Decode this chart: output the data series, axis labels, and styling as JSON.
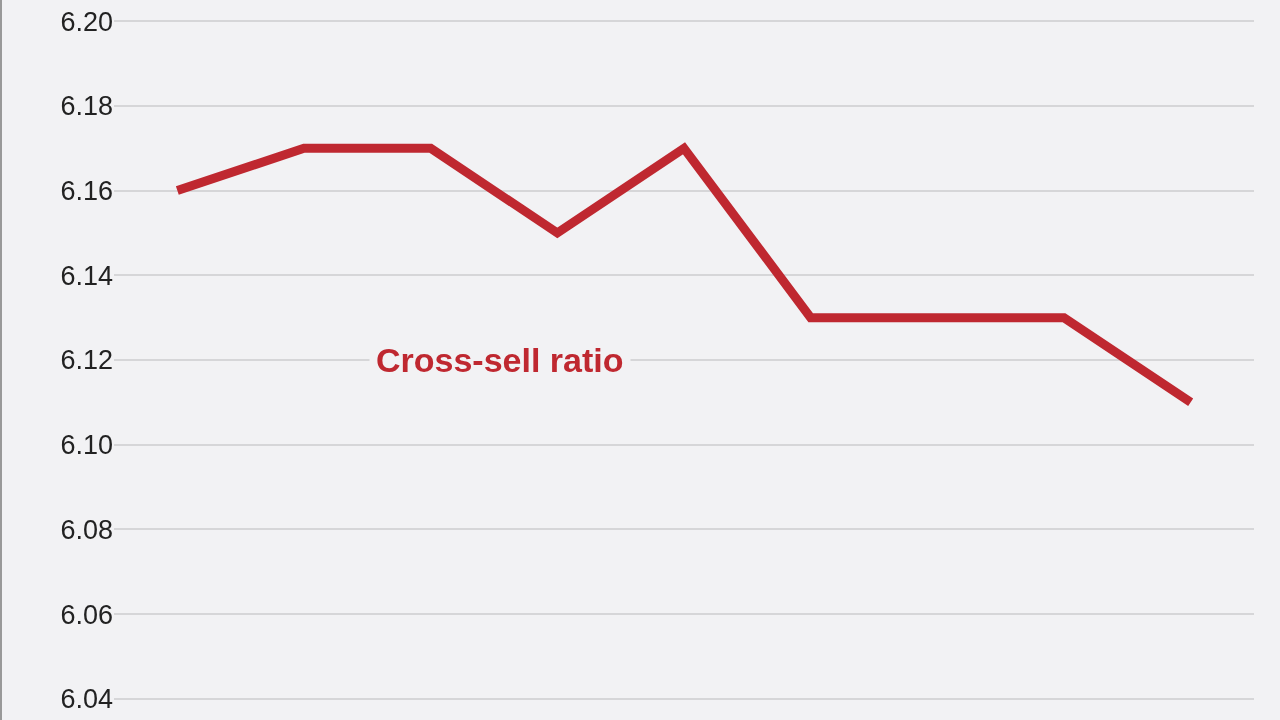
{
  "chart_data": {
    "type": "line",
    "categories": [
      null,
      null,
      null,
      null,
      null,
      null,
      null,
      null,
      null
    ],
    "series": [
      {
        "name": "Cross-sell ratio",
        "color": "#bf2830",
        "values": [
          6.16,
          6.17,
          6.17,
          6.15,
          6.17,
          6.13,
          6.13,
          6.13,
          6.11
        ]
      }
    ],
    "ylim": [
      6.035,
      6.205
    ],
    "yticks": [
      6.04,
      6.06,
      6.08,
      {
        "value": 6.1,
        "label": "6.10"
      },
      6.12,
      6.14,
      6.16,
      6.18,
      {
        "value": 6.2,
        "label": "6.20"
      }
    ],
    "grid": "y",
    "tick_labels": "y",
    "marker": "none",
    "line_style": "solid",
    "legend": false
  }
}
